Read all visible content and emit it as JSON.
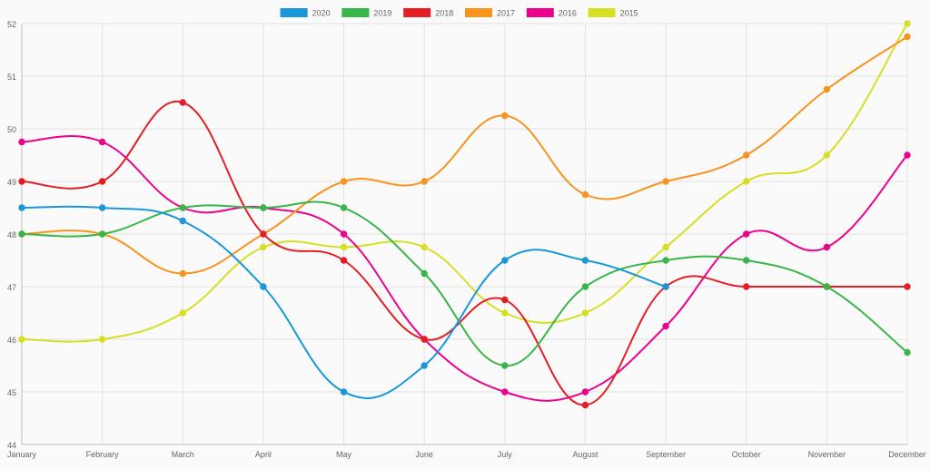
{
  "chart_data": {
    "type": "line",
    "title": "",
    "xlabel": "",
    "ylabel": "",
    "categories": [
      "January",
      "February",
      "March",
      "April",
      "May",
      "June",
      "July",
      "August",
      "September",
      "October",
      "November",
      "December"
    ],
    "ylim": [
      44,
      52
    ],
    "yticks": [
      "44",
      "45",
      "46",
      "47",
      "48",
      "49",
      "50",
      "51",
      "52"
    ],
    "grid": true,
    "legend_position": "top-center",
    "smooth": true,
    "series": [
      {
        "name": "2020",
        "color": "#1a97d6",
        "values": [
          48.5,
          48.5,
          48.25,
          47,
          45,
          45.5,
          47.5,
          47.5,
          47,
          null,
          null,
          null
        ]
      },
      {
        "name": "2019",
        "color": "#39b54a",
        "values": [
          48,
          48,
          48.5,
          48.5,
          48.5,
          47.25,
          45.5,
          47,
          47.5,
          47.5,
          47,
          45.75
        ]
      },
      {
        "name": "2018",
        "color": "#e41e25",
        "values": [
          49,
          49,
          50.5,
          48,
          47.5,
          46,
          46.75,
          44.75,
          47,
          47,
          47,
          47
        ]
      },
      {
        "name": "2017",
        "color": "#f7941d",
        "values": [
          48,
          48,
          47.25,
          48,
          49,
          49,
          50.25,
          48.75,
          49,
          49.5,
          50.75,
          51.75
        ]
      },
      {
        "name": "2016",
        "color": "#ec008c",
        "values": [
          49.75,
          49.75,
          48.5,
          48.5,
          48,
          46,
          45,
          45,
          46.25,
          48,
          47.75,
          49.5
        ]
      },
      {
        "name": "2015",
        "color": "#d7df23",
        "values": [
          46,
          46,
          46.5,
          47.75,
          47.75,
          47.75,
          46.5,
          46.5,
          47.75,
          49,
          49.5,
          52
        ]
      }
    ]
  }
}
